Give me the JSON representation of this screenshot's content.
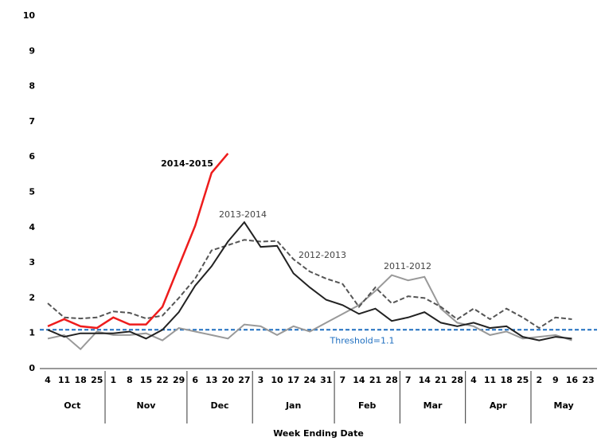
{
  "chart_data": {
    "type": "line",
    "xlabel": "Week Ending Date",
    "categories": [
      "4",
      "11",
      "18",
      "25",
      "1",
      "8",
      "15",
      "22",
      "29",
      "6",
      "13",
      "20",
      "27",
      "3",
      "10",
      "17",
      "24",
      "31",
      "7",
      "14",
      "21",
      "28",
      "7",
      "14",
      "21",
      "28",
      "4",
      "11",
      "18",
      "25",
      "2",
      "9",
      "16",
      "23"
    ],
    "groups": [
      "Oct",
      "Oct",
      "Oct",
      "Oct",
      "Nov",
      "Nov",
      "Nov",
      "Nov",
      "Nov",
      "Dec",
      "Dec",
      "Dec",
      "Dec",
      "Jan",
      "Jan",
      "Jan",
      "Jan",
      "Jan",
      "Feb",
      "Feb",
      "Feb",
      "Feb",
      "Mar",
      "Mar",
      "Mar",
      "Mar",
      "Apr",
      "Apr",
      "Apr",
      "Apr",
      "May",
      "May",
      "May",
      "May"
    ],
    "ylim": [
      0,
      10
    ],
    "yticks": [
      0,
      1,
      2,
      3,
      4,
      5,
      6,
      7,
      8,
      9,
      10
    ],
    "series": [
      {
        "name": "2011-2012",
        "color": "#999999",
        "dash": false,
        "values": [
          0.85,
          0.95,
          0.55,
          1.05,
          0.95,
          0.95,
          1.0,
          0.8,
          1.15,
          1.05,
          0.95,
          0.85,
          1.25,
          1.2,
          0.95,
          1.2,
          1.05,
          1.3,
          1.55,
          1.8,
          2.2,
          2.65,
          2.5,
          2.6,
          1.7,
          1.3,
          1.2,
          0.95,
          1.05,
          0.85,
          0.9,
          0.95,
          0.8,
          null
        ]
      },
      {
        "name": "2012-2013",
        "color": "#555555",
        "dash": true,
        "values": [
          1.85,
          1.45,
          1.42,
          1.45,
          1.62,
          1.58,
          1.42,
          1.5,
          2.0,
          2.55,
          3.35,
          3.5,
          3.65,
          3.6,
          3.62,
          3.1,
          2.75,
          2.55,
          2.4,
          1.75,
          2.3,
          1.85,
          2.05,
          2.0,
          1.75,
          1.4,
          1.7,
          1.4,
          1.7,
          1.45,
          1.15,
          1.45,
          1.4,
          null
        ]
      },
      {
        "name": "2013-2014",
        "color": "#222222",
        "dash": false,
        "values": [
          1.1,
          0.9,
          1.0,
          1.0,
          1.0,
          1.05,
          0.85,
          1.1,
          1.6,
          2.35,
          2.9,
          3.6,
          4.15,
          3.45,
          3.48,
          2.7,
          2.3,
          1.95,
          1.8,
          1.55,
          1.7,
          1.35,
          1.45,
          1.6,
          1.3,
          1.2,
          1.3,
          1.15,
          1.2,
          0.9,
          0.8,
          0.9,
          0.85,
          null
        ]
      },
      {
        "name": "2014-2015",
        "color": "#ee1c1c",
        "dash": false,
        "values": [
          1.2,
          1.4,
          1.2,
          1.15,
          1.45,
          1.25,
          1.25,
          1.75,
          2.9,
          4.05,
          5.55,
          6.1,
          null,
          null,
          null,
          null,
          null,
          null,
          null,
          null,
          null,
          null,
          null,
          null,
          null,
          null,
          null,
          null,
          null,
          null,
          null,
          null,
          null,
          null
        ]
      }
    ],
    "threshold": {
      "value": 1.1,
      "label": "Threshold=1.1",
      "color": "#1f6fc0"
    }
  }
}
